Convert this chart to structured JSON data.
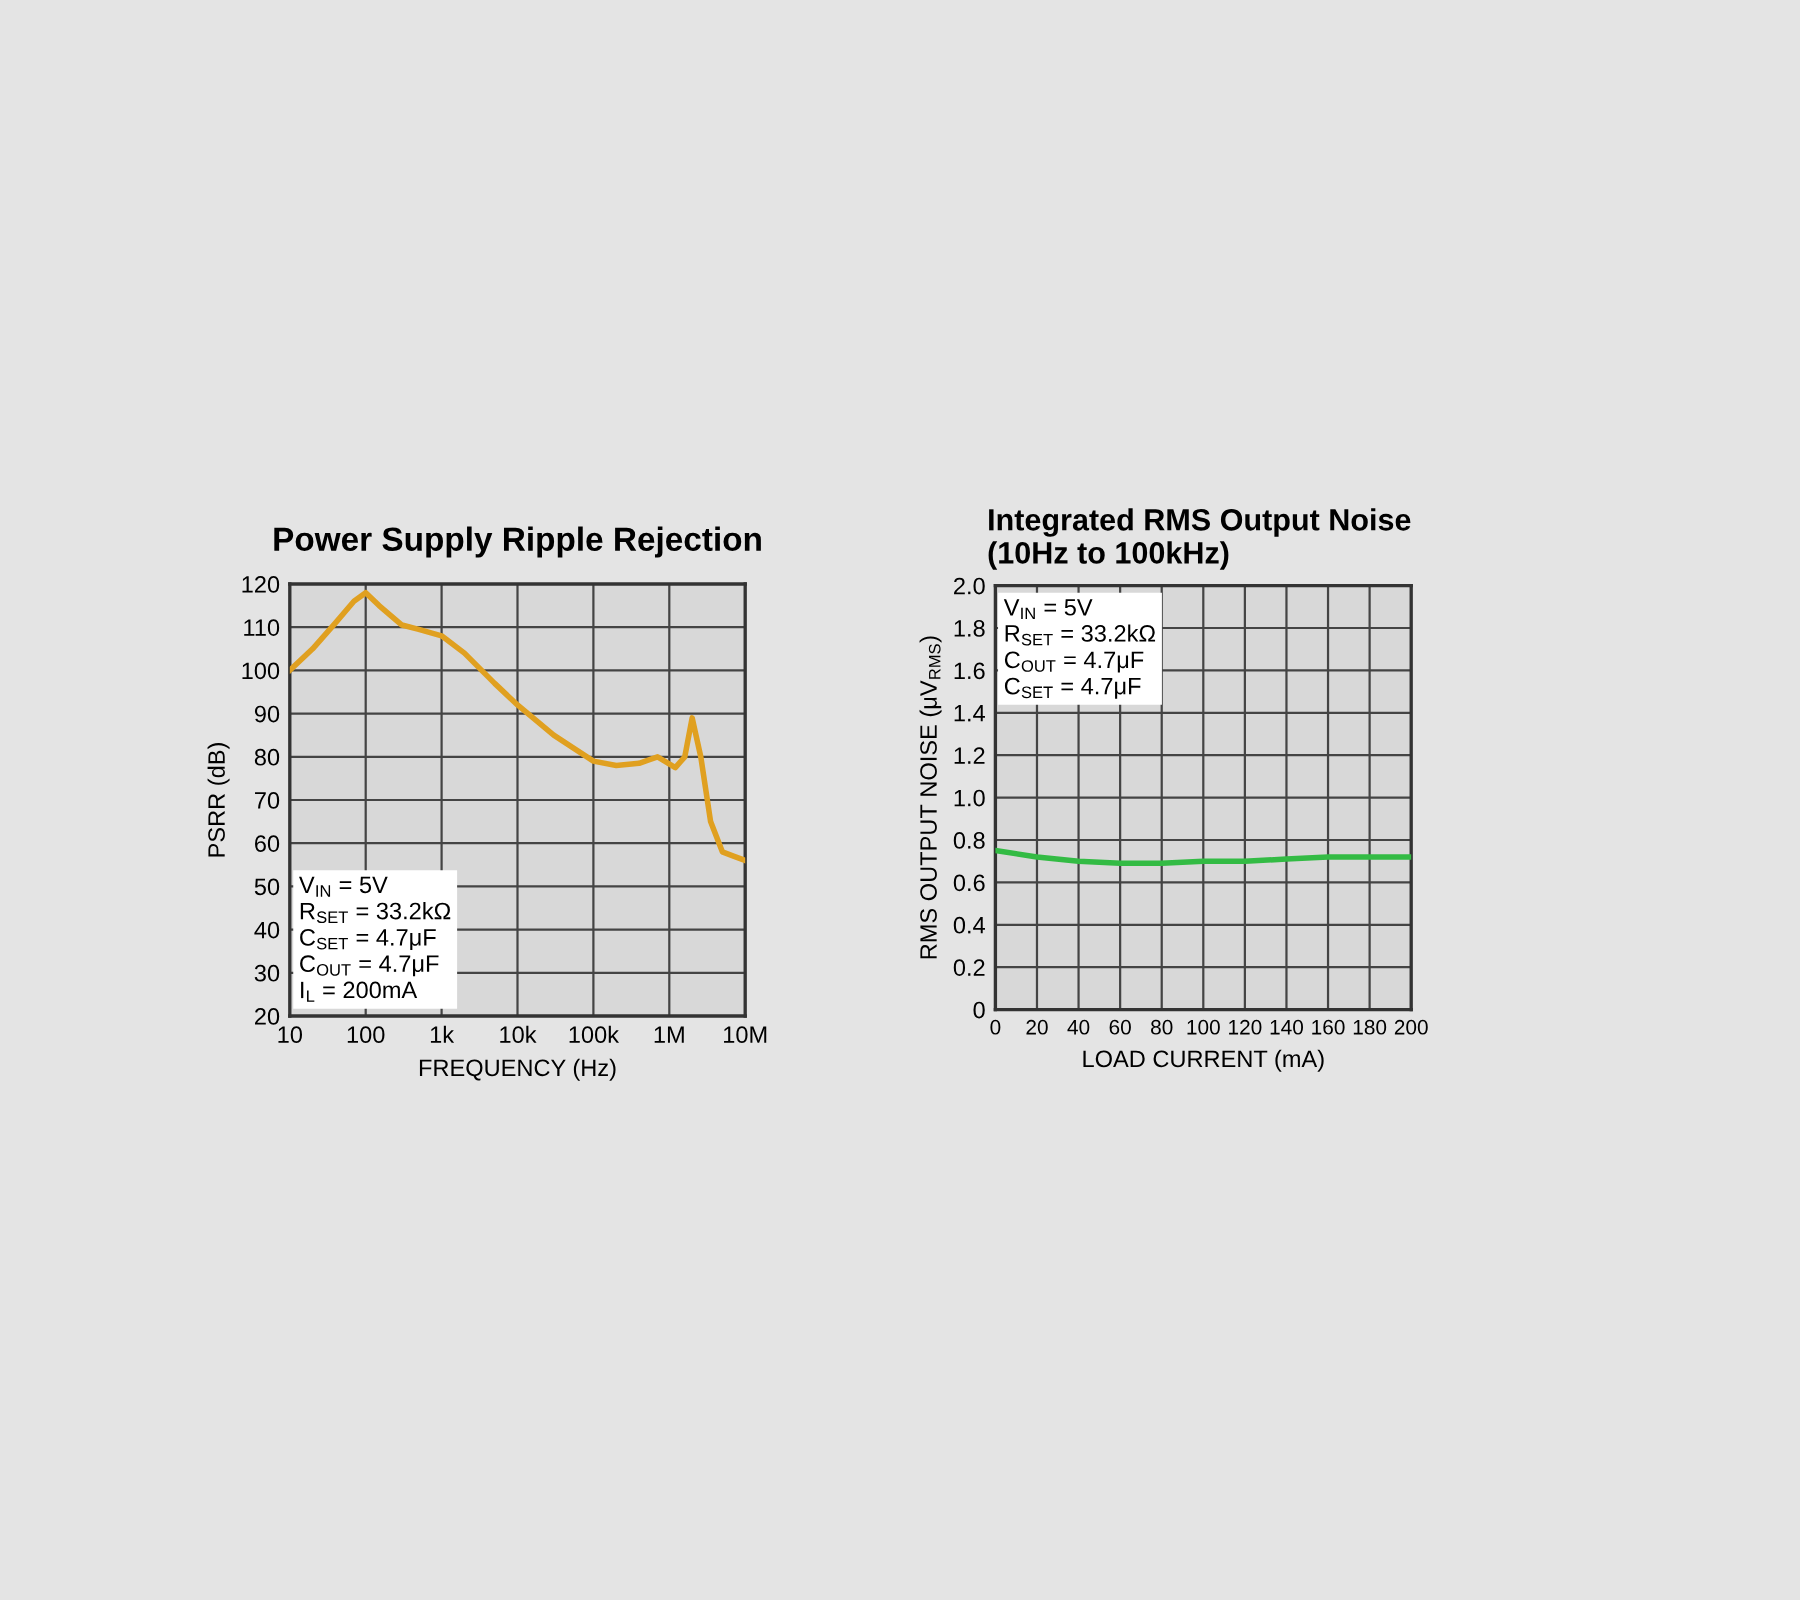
{
  "chart_data": [
    {
      "type": "line",
      "title": "Power Supply Ripple Rejection",
      "xlabel": "FREQUENCY (Hz)",
      "ylabel": "PSRR (dB)",
      "log": "x",
      "grid": true,
      "x": [
        10,
        20,
        40,
        70,
        100,
        150,
        300,
        500,
        1000,
        2000,
        5000,
        10000,
        30000,
        100000,
        200000,
        400000,
        700000,
        1200000,
        1600000,
        2000000,
        2600000,
        3500000,
        5000000,
        7000000,
        10000000
      ],
      "series": [
        {
          "color": "#e0a020",
          "values": [
            100,
            105,
            111,
            116,
            118,
            115,
            110.5,
            109.5,
            108,
            104,
            97,
            92,
            85,
            79,
            78,
            78.5,
            80,
            77.5,
            80,
            89,
            80,
            65,
            58,
            57,
            56
          ]
        }
      ],
      "xlim": [
        10,
        10000000
      ],
      "xticks": [
        10,
        100,
        {
          "value": 1000,
          "label": "1k"
        },
        {
          "value": 10000,
          "label": "10k"
        },
        {
          "value": 100000,
          "label": "100k"
        },
        {
          "value": 1000000,
          "label": "1M"
        },
        {
          "value": 10000000,
          "label": "10M"
        }
      ],
      "ylim": [
        20,
        120
      ],
      "yticks": [
        20,
        30,
        40,
        50,
        60,
        70,
        80,
        90,
        100,
        110,
        120
      ],
      "annotations": [
        "V$_{IN}$ = 5V\nR$_{SET}$ = 33.2kΩ\nC$_{SET}$ = 4.7μF\nC$_{OUT}$ = 4.7μF\nI$_{L}$ = 200mA"
      ]
    },
    {
      "type": "line",
      "title": "Integrated RMS Output Noise\n(10Hz to 100kHz)",
      "xlabel": "LOAD CURRENT (mA)",
      "ylabel": "RMS OUTPUT NOISE (μV$_{RMS}$)",
      "grid": true,
      "x": [
        0,
        20,
        40,
        60,
        80,
        100,
        120,
        140,
        160,
        180,
        200
      ],
      "series": [
        {
          "color": "#33bb44",
          "values": [
            0.75,
            0.72,
            0.7,
            0.69,
            0.69,
            0.7,
            0.7,
            0.71,
            0.72,
            0.72,
            0.72
          ]
        }
      ],
      "xlim": [
        0,
        200
      ],
      "xticks": [
        0,
        20,
        40,
        60,
        80,
        100,
        120,
        140,
        160,
        180,
        200
      ],
      "ylim": [
        0,
        2.0
      ],
      "yticks": [
        0,
        0.2,
        0.4,
        0.6,
        0.8,
        {
          "value": 1.0,
          "label": "1.0"
        },
        1.2,
        1.4,
        1.6,
        1.8,
        {
          "value": 2.0,
          "label": "2.0"
        }
      ],
      "annotations": [
        "V$_{IN}$ = 5V\nR$_{SET}$ = 33.2kΩ\nC$_{OUT}$ = 4.7μF\nC$_{SET}$ = 4.7μF"
      ]
    }
  ]
}
